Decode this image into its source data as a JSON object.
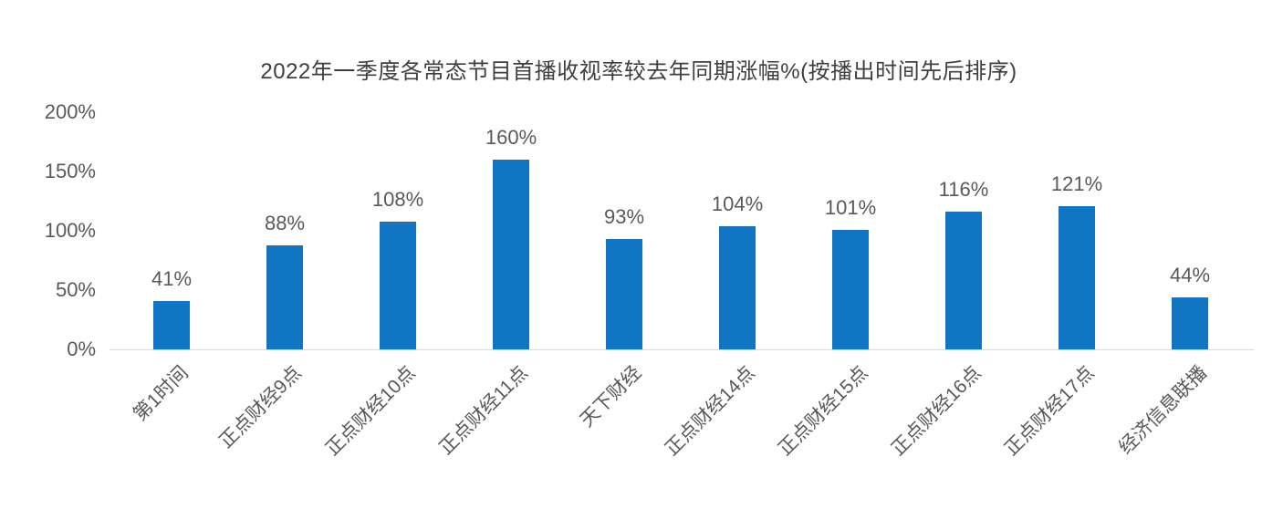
{
  "chart_data": {
    "type": "bar",
    "title": "2022年一季度各常态节目首播收视率较去年同期涨幅%(按播出时间先后排序)",
    "categories": [
      "第1时间",
      "正点财经9点",
      "正点财经10点",
      "正点财经11点",
      "天下财经",
      "正点财经14点",
      "正点财经15点",
      "正点财经16点",
      "正点财经17点",
      "经济信息联播"
    ],
    "values": [
      41,
      88,
      108,
      160,
      93,
      104,
      101,
      116,
      121,
      44
    ],
    "value_labels": [
      "41%",
      "88%",
      "108%",
      "160%",
      "93%",
      "104%",
      "101%",
      "116%",
      "121%",
      "44%"
    ],
    "yticks": [
      {
        "value": 200,
        "label": "200%"
      },
      {
        "value": 150,
        "label": "150%"
      },
      {
        "value": 100,
        "label": "100%"
      },
      {
        "value": 50,
        "label": "50%"
      },
      {
        "value": 0,
        "label": "0%"
      }
    ],
    "ylim": [
      0,
      200
    ],
    "xlabel": "",
    "ylabel": "",
    "grid": false,
    "legend": null,
    "colors": {
      "bar": "#1076C4",
      "label": "#595959",
      "title": "#3F3F3F",
      "axis_line": "#DCDCDC"
    }
  }
}
